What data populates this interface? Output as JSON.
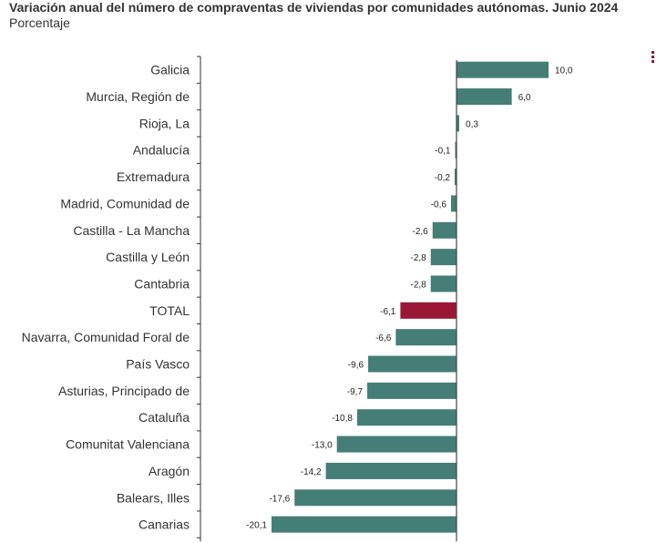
{
  "header": {
    "title": "Variación anual del número de compraventas de viviendas por comunidades autónomas. Junio 2024",
    "subtitle": "Porcentaje"
  },
  "colors": {
    "bar": "#457e76",
    "highlight": "#9b1737",
    "axis": "#333333",
    "menu": "#8b1a3a"
  },
  "menu": {
    "icon": "vertical-ellipsis-icon"
  },
  "chart_data": {
    "type": "bar",
    "orientation": "horizontal",
    "title": "Variación anual del número de compraventas de viviendas por comunidades autónomas. Junio 2024",
    "subtitle": "Porcentaje",
    "categories": [
      "Galicia",
      "Murcia, Región de",
      "Rioja, La",
      "Andalucía",
      "Extremadura",
      "Madrid, Comunidad de",
      "Castilla - La Mancha",
      "Castilla y León",
      "Cantabria",
      "TOTAL",
      "Navarra, Comunidad Foral de",
      "País Vasco",
      "Asturias, Principado de",
      "Cataluña",
      "Comunitat Valenciana",
      "Aragón",
      "Balears, Illes",
      "Canarias"
    ],
    "values": [
      10.0,
      6.0,
      0.3,
      -0.1,
      -0.2,
      -0.6,
      -2.6,
      -2.8,
      -2.8,
      -6.1,
      -6.6,
      -9.6,
      -9.7,
      -10.8,
      -13.0,
      -14.2,
      -17.6,
      -20.1
    ],
    "value_labels": [
      "10,0",
      "6,0",
      "0,3",
      "-0,1",
      "-0,2",
      "-0,6",
      "-2,6",
      "-2,8",
      "-2,8",
      "-6,1",
      "-6,6",
      "-9,6",
      "-9,7",
      "-10,8",
      "-13,0",
      "-14,2",
      "-17,6",
      "-20,1"
    ],
    "highlight_category": "TOTAL",
    "xlim": [
      -21,
      13
    ],
    "grid": false,
    "legend": "none"
  }
}
